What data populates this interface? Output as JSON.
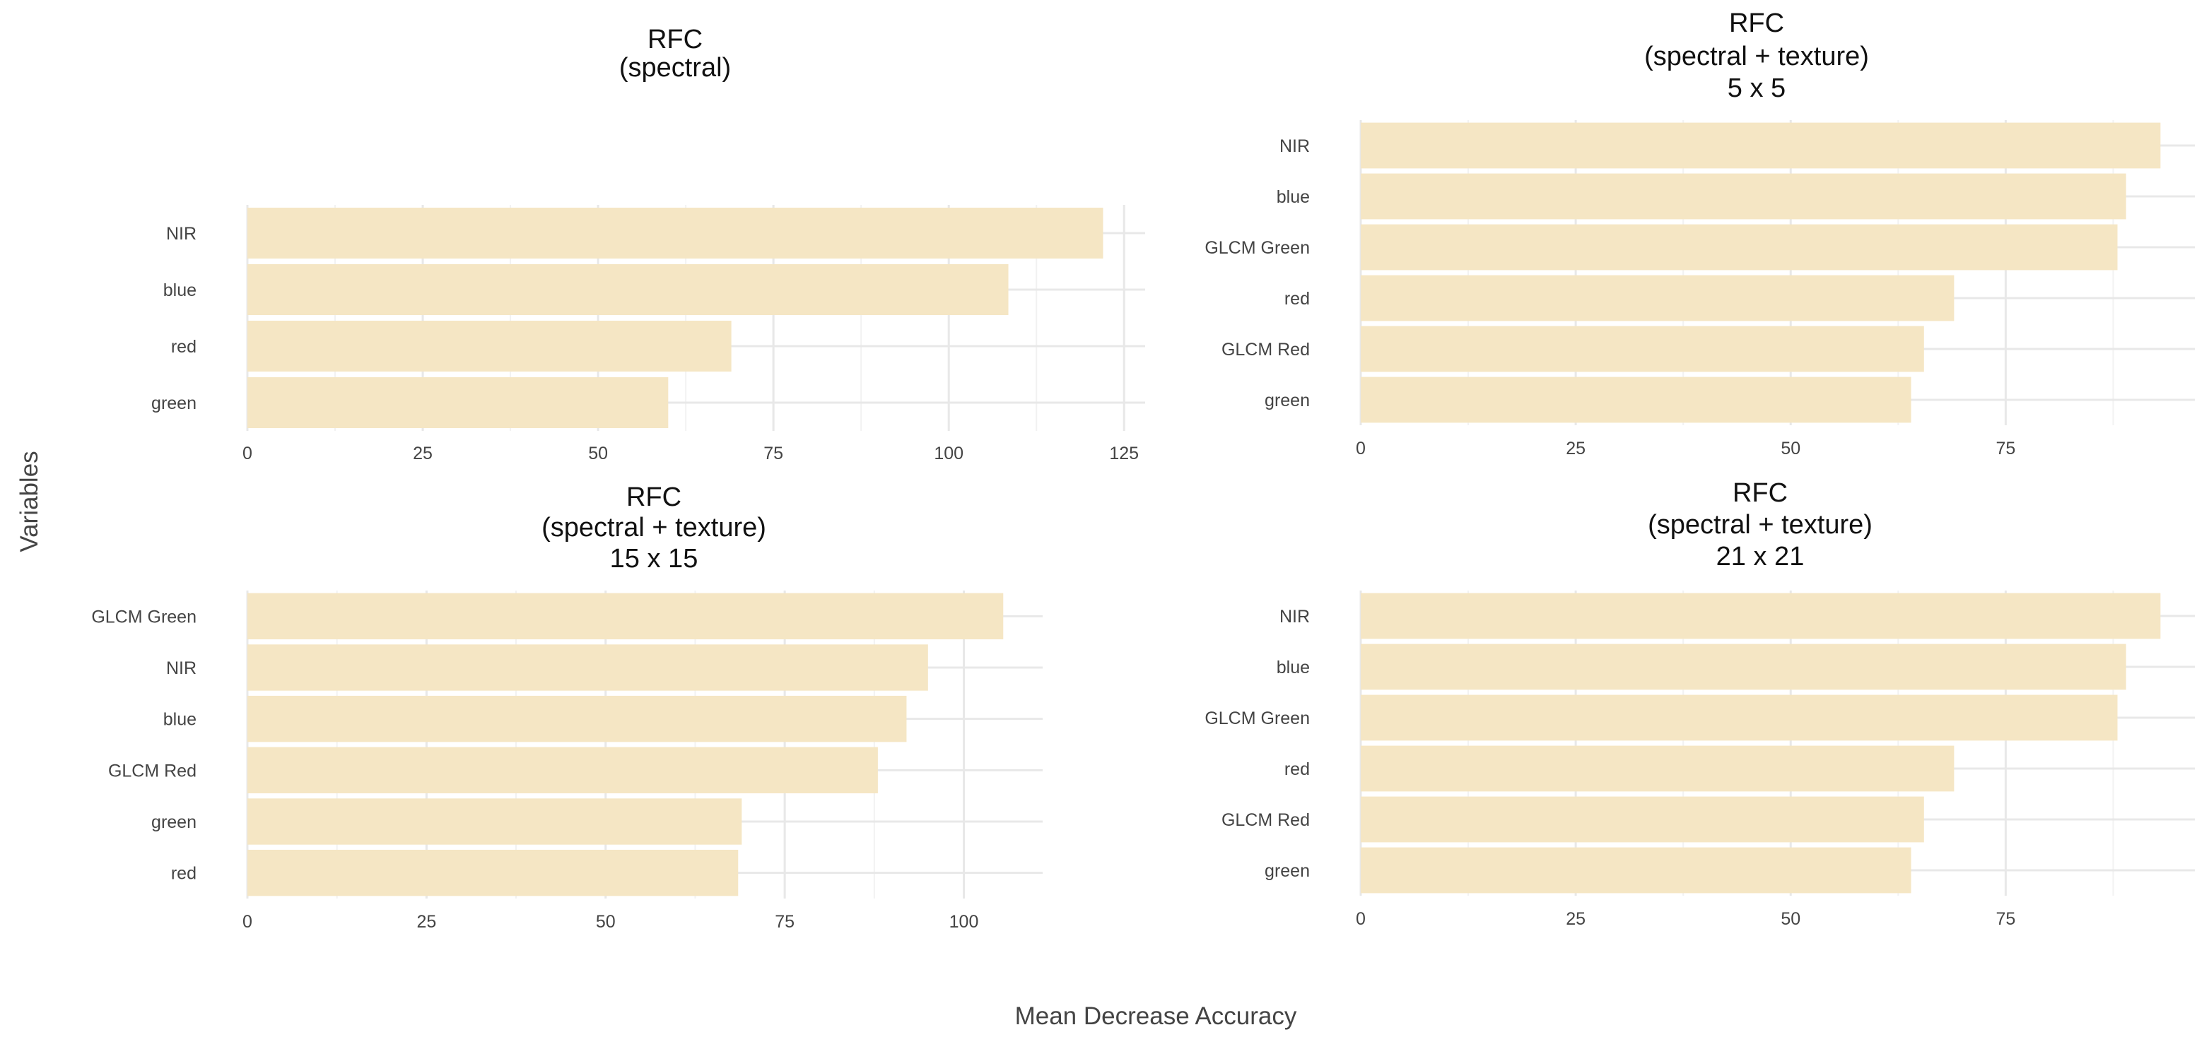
{
  "figure": {
    "xlabel": "Mean Decrease Accuracy",
    "ylabel": "Variables",
    "bar_color": "#f5e6c4",
    "grid_color": "#e8e8e8",
    "background": "#ffffff"
  },
  "chart_data": [
    {
      "type": "bar",
      "orientation": "horizontal",
      "title_lines": [
        "RFC",
        "(spectral)"
      ],
      "categories": [
        "NIR",
        "blue",
        "red",
        "green"
      ],
      "values": [
        122,
        108.5,
        69,
        60
      ],
      "xlim": [
        0,
        128
      ],
      "xticks": [
        0,
        25,
        50,
        75,
        100,
        125
      ]
    },
    {
      "type": "bar",
      "orientation": "horizontal",
      "title_lines": [
        "RFC",
        "(spectral + texture)",
        "5 x 5"
      ],
      "categories": [
        "NIR",
        "blue",
        "GLCM Green",
        "red",
        "GLCM Red",
        "green"
      ],
      "values": [
        93,
        89,
        88,
        69,
        65.5,
        64
      ],
      "xlim": [
        0,
        97
      ],
      "xticks": [
        0,
        25,
        50,
        75
      ]
    },
    {
      "type": "bar",
      "orientation": "horizontal",
      "title_lines": [
        "RFC",
        "(spectral + texture)",
        "15 x 15"
      ],
      "categories": [
        "GLCM Green",
        "NIR",
        "blue",
        "GLCM Red",
        "green",
        "red"
      ],
      "values": [
        105.5,
        95,
        92,
        88,
        69,
        68.5
      ],
      "xlim": [
        0,
        111
      ],
      "xticks": [
        0,
        25,
        50,
        75,
        100
      ]
    },
    {
      "type": "bar",
      "orientation": "horizontal",
      "title_lines": [
        "RFC",
        "(spectral + texture)",
        "21 x 21"
      ],
      "categories": [
        "NIR",
        "blue",
        "GLCM Green",
        "red",
        "GLCM Red",
        "green"
      ],
      "values": [
        93,
        89,
        88,
        69,
        65.5,
        64
      ],
      "xlim": [
        0,
        97
      ],
      "xticks": [
        0,
        25,
        50,
        75
      ]
    }
  ]
}
